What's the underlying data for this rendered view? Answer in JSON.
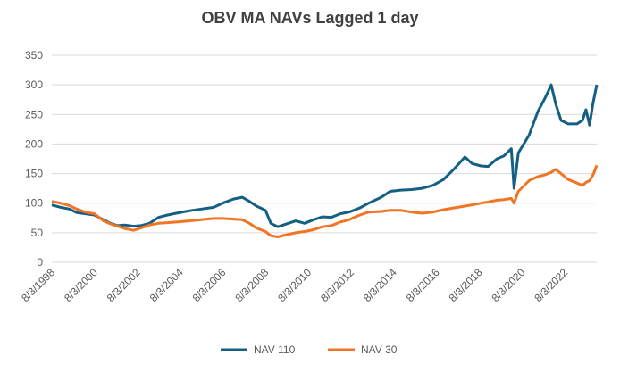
{
  "chart_data": {
    "type": "line",
    "title": "OBV MA NAVs Lagged 1 day",
    "xlabel": "",
    "ylabel": "",
    "ylim": [
      0,
      350
    ],
    "yticks": [
      "0",
      "50",
      "100",
      "150",
      "200",
      "250",
      "300",
      "350"
    ],
    "xticks": [
      "8/3/1998",
      "8/3/2000",
      "8/3/2002",
      "8/3/2004",
      "8/3/2006",
      "8/3/2008",
      "8/3/2010",
      "8/3/2012",
      "8/3/2014",
      "8/3/2016",
      "8/3/2018",
      "8/3/2020",
      "8/3/2022"
    ],
    "xlim": [
      "1998-08-03",
      "2024-02-01"
    ],
    "grid": true,
    "legend_position": "bottom",
    "series": [
      {
        "name": "NAV 110",
        "color": "#156082",
        "points": [
          [
            "1998-08-03",
            97
          ],
          [
            "1999-01-01",
            93
          ],
          [
            "1999-06-01",
            90
          ],
          [
            "1999-10-01",
            84
          ],
          [
            "2000-03-01",
            82
          ],
          [
            "2000-08-01",
            80
          ],
          [
            "2001-01-01",
            72
          ],
          [
            "2001-05-01",
            66
          ],
          [
            "2001-09-01",
            62
          ],
          [
            "2002-01-01",
            63
          ],
          [
            "2002-06-01",
            61
          ],
          [
            "2002-10-01",
            62
          ],
          [
            "2003-03-01",
            66
          ],
          [
            "2003-08-01",
            76
          ],
          [
            "2004-01-01",
            80
          ],
          [
            "2004-06-01",
            83
          ],
          [
            "2005-01-01",
            87
          ],
          [
            "2005-08-01",
            90
          ],
          [
            "2006-03-01",
            93
          ],
          [
            "2006-08-01",
            100
          ],
          [
            "2007-02-01",
            107
          ],
          [
            "2007-07-01",
            110
          ],
          [
            "2007-11-01",
            103
          ],
          [
            "2008-03-01",
            95
          ],
          [
            "2008-08-01",
            88
          ],
          [
            "2008-11-01",
            66
          ],
          [
            "2009-03-01",
            60
          ],
          [
            "2009-07-01",
            64
          ],
          [
            "2010-01-01",
            70
          ],
          [
            "2010-06-01",
            66
          ],
          [
            "2010-11-01",
            72
          ],
          [
            "2011-04-01",
            77
          ],
          [
            "2011-09-01",
            76
          ],
          [
            "2012-02-01",
            82
          ],
          [
            "2012-07-01",
            85
          ],
          [
            "2013-01-01",
            92
          ],
          [
            "2013-06-01",
            100
          ],
          [
            "2014-01-01",
            110
          ],
          [
            "2014-06-01",
            120
          ],
          [
            "2014-12-01",
            122
          ],
          [
            "2015-06-01",
            123
          ],
          [
            "2015-12-01",
            125
          ],
          [
            "2016-06-01",
            130
          ],
          [
            "2016-12-01",
            140
          ],
          [
            "2017-06-01",
            158
          ],
          [
            "2017-12-01",
            178
          ],
          [
            "2018-04-01",
            167
          ],
          [
            "2018-09-01",
            163
          ],
          [
            "2019-01-01",
            162
          ],
          [
            "2019-06-01",
            175
          ],
          [
            "2019-10-01",
            180
          ],
          [
            "2020-02-01",
            192
          ],
          [
            "2020-03-20",
            125
          ],
          [
            "2020-06-01",
            185
          ],
          [
            "2020-12-01",
            215
          ],
          [
            "2021-05-01",
            255
          ],
          [
            "2021-09-01",
            278
          ],
          [
            "2021-12-15",
            300
          ],
          [
            "2022-03-01",
            268
          ],
          [
            "2022-06-01",
            240
          ],
          [
            "2022-10-01",
            234
          ],
          [
            "2023-03-01",
            234
          ],
          [
            "2023-06-01",
            240
          ],
          [
            "2023-08-01",
            258
          ],
          [
            "2023-10-01",
            232
          ],
          [
            "2023-12-01",
            270
          ],
          [
            "2024-02-01",
            300
          ]
        ]
      },
      {
        "name": "NAV 30",
        "color": "#F27525",
        "points": [
          [
            "1998-08-03",
            103
          ],
          [
            "1999-01-01",
            100
          ],
          [
            "1999-06-01",
            96
          ],
          [
            "1999-10-01",
            90
          ],
          [
            "2000-03-01",
            85
          ],
          [
            "2000-08-01",
            82
          ],
          [
            "2001-01-01",
            70
          ],
          [
            "2001-05-01",
            65
          ],
          [
            "2001-09-01",
            61
          ],
          [
            "2002-01-01",
            57
          ],
          [
            "2002-06-01",
            54
          ],
          [
            "2002-10-01",
            58
          ],
          [
            "2003-03-01",
            63
          ],
          [
            "2003-08-01",
            66
          ],
          [
            "2004-01-01",
            67
          ],
          [
            "2004-06-01",
            68
          ],
          [
            "2005-01-01",
            70
          ],
          [
            "2005-08-01",
            72
          ],
          [
            "2006-03-01",
            74
          ],
          [
            "2006-08-01",
            74
          ],
          [
            "2007-02-01",
            73
          ],
          [
            "2007-07-01",
            72
          ],
          [
            "2007-11-01",
            66
          ],
          [
            "2008-03-01",
            58
          ],
          [
            "2008-08-01",
            52
          ],
          [
            "2008-11-01",
            45
          ],
          [
            "2009-03-01",
            43
          ],
          [
            "2009-07-01",
            46
          ],
          [
            "2010-01-01",
            50
          ],
          [
            "2010-06-01",
            52
          ],
          [
            "2010-11-01",
            55
          ],
          [
            "2011-04-01",
            60
          ],
          [
            "2011-09-01",
            62
          ],
          [
            "2012-02-01",
            68
          ],
          [
            "2012-07-01",
            72
          ],
          [
            "2013-01-01",
            80
          ],
          [
            "2013-06-01",
            85
          ],
          [
            "2014-01-01",
            86
          ],
          [
            "2014-06-01",
            88
          ],
          [
            "2014-12-01",
            88
          ],
          [
            "2015-06-01",
            85
          ],
          [
            "2015-12-01",
            83
          ],
          [
            "2016-06-01",
            85
          ],
          [
            "2016-12-01",
            89
          ],
          [
            "2017-06-01",
            92
          ],
          [
            "2017-12-01",
            95
          ],
          [
            "2018-04-01",
            97
          ],
          [
            "2018-09-01",
            100
          ],
          [
            "2019-01-01",
            102
          ],
          [
            "2019-06-01",
            105
          ],
          [
            "2019-10-01",
            106
          ],
          [
            "2020-02-01",
            108
          ],
          [
            "2020-03-20",
            100
          ],
          [
            "2020-06-01",
            120
          ],
          [
            "2020-12-01",
            138
          ],
          [
            "2021-05-01",
            145
          ],
          [
            "2021-09-01",
            148
          ],
          [
            "2021-12-15",
            152
          ],
          [
            "2022-03-01",
            157
          ],
          [
            "2022-06-01",
            150
          ],
          [
            "2022-10-01",
            140
          ],
          [
            "2023-03-01",
            134
          ],
          [
            "2023-06-01",
            130
          ],
          [
            "2023-08-01",
            135
          ],
          [
            "2023-10-01",
            138
          ],
          [
            "2023-12-01",
            148
          ],
          [
            "2024-02-01",
            164
          ]
        ]
      }
    ]
  }
}
